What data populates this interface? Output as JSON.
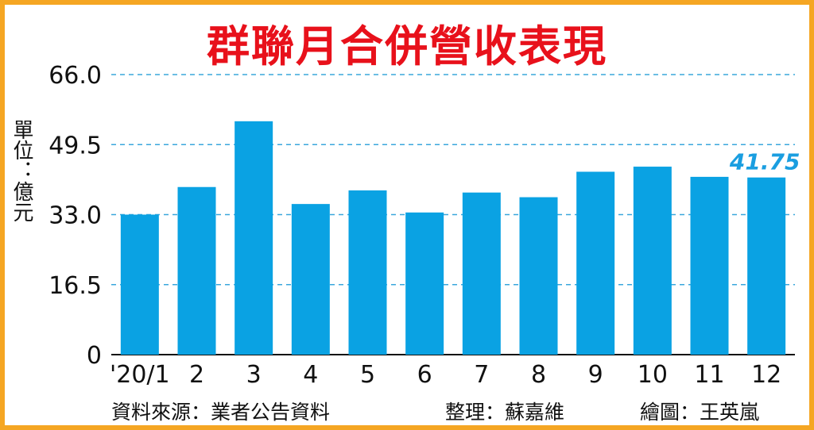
{
  "chart_data": {
    "type": "bar",
    "title": "群聯月合併營收表現",
    "ylabel": "單位：億元",
    "xlabel": "",
    "ylim": [
      0,
      66.0
    ],
    "yticks": [
      "66.0",
      "49.5",
      "33.0",
      "16.5",
      "0"
    ],
    "categories": [
      "'20/1",
      "2",
      "3",
      "4",
      "5",
      "6",
      "7",
      "8",
      "9",
      "10",
      "11",
      "12"
    ],
    "values": [
      33.0,
      39.5,
      55.0,
      35.5,
      38.7,
      33.5,
      38.2,
      37.1,
      43.1,
      44.3,
      41.9,
      41.75
    ],
    "highlight": {
      "index": 11,
      "label": "41.75"
    },
    "grid": true,
    "colors": {
      "bar": "#0aa2e3",
      "grid": "#3aa7dc",
      "title": "#e8111b",
      "frame": "#f5a623"
    }
  },
  "footer": {
    "source": "資料來源：業者公告資料",
    "editor": "整理：蘇嘉維",
    "illustrator": "繪圖：王英嵐"
  }
}
